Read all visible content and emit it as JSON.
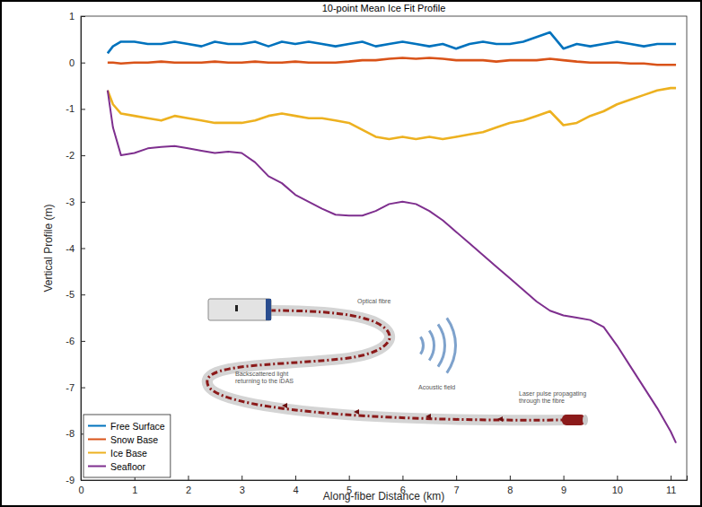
{
  "chart_data": {
    "type": "line",
    "title": "10-point Mean Ice Fit Profile",
    "x_label": "Along-fiber Distance (km)",
    "y_label": "Vertical Profile (m)",
    "x": [
      0.5,
      0.6,
      0.75,
      1,
      1.25,
      1.5,
      1.75,
      2,
      2.25,
      2.5,
      2.75,
      3,
      3.25,
      3.5,
      3.75,
      4,
      4.25,
      4.5,
      4.75,
      5,
      5.25,
      5.5,
      5.75,
      6,
      6.25,
      6.5,
      6.75,
      7,
      7.25,
      7.5,
      7.75,
      8,
      8.25,
      8.5,
      8.75,
      9,
      9.25,
      9.5,
      9.75,
      10,
      10.25,
      10.5,
      10.75,
      11,
      11.1
    ],
    "series": [
      {
        "name": "Free Surface",
        "color": "#0072BD",
        "values": [
          0.2,
          0.35,
          0.45,
          0.45,
          0.4,
          0.4,
          0.45,
          0.4,
          0.35,
          0.45,
          0.4,
          0.4,
          0.45,
          0.35,
          0.45,
          0.4,
          0.45,
          0.4,
          0.35,
          0.4,
          0.45,
          0.35,
          0.4,
          0.45,
          0.4,
          0.35,
          0.4,
          0.3,
          0.4,
          0.45,
          0.4,
          0.4,
          0.45,
          0.55,
          0.65,
          0.3,
          0.4,
          0.35,
          0.4,
          0.45,
          0.4,
          0.35,
          0.4,
          0.4,
          0.4
        ]
      },
      {
        "name": "Snow Base",
        "color": "#D95319",
        "values": [
          0,
          0,
          -0.02,
          0,
          0,
          0.02,
          0,
          0,
          0,
          0.02,
          0,
          0,
          0.02,
          0,
          0,
          0.02,
          0,
          0,
          0,
          0.02,
          0.05,
          0.05,
          0.08,
          0.1,
          0.08,
          0.1,
          0.08,
          0.05,
          0.05,
          0.05,
          0.02,
          0.05,
          0.05,
          0.05,
          0.08,
          0.05,
          0.02,
          0,
          0,
          0,
          -0.02,
          -0.02,
          -0.05,
          -0.05,
          -0.05
        ]
      },
      {
        "name": "Ice Base",
        "color": "#EDB120",
        "values": [
          -0.6,
          -0.9,
          -1.1,
          -1.15,
          -1.2,
          -1.25,
          -1.15,
          -1.2,
          -1.25,
          -1.3,
          -1.3,
          -1.3,
          -1.25,
          -1.15,
          -1.1,
          -1.15,
          -1.2,
          -1.2,
          -1.25,
          -1.3,
          -1.45,
          -1.6,
          -1.65,
          -1.6,
          -1.65,
          -1.6,
          -1.65,
          -1.6,
          -1.55,
          -1.5,
          -1.4,
          -1.3,
          -1.25,
          -1.15,
          -1.05,
          -1.35,
          -1.3,
          -1.15,
          -1.05,
          -0.9,
          -0.8,
          -0.7,
          -0.6,
          -0.55,
          -0.55
        ]
      },
      {
        "name": "Seafloor",
        "color": "#7E2F8E",
        "values": [
          -0.6,
          -1.4,
          -2.0,
          -1.95,
          -1.85,
          -1.82,
          -1.8,
          -1.85,
          -1.9,
          -1.95,
          -1.92,
          -1.95,
          -2.15,
          -2.45,
          -2.6,
          -2.85,
          -3.0,
          -3.15,
          -3.28,
          -3.3,
          -3.3,
          -3.2,
          -3.05,
          -3.0,
          -3.05,
          -3.2,
          -3.4,
          -3.65,
          -3.9,
          -4.15,
          -4.4,
          -4.65,
          -4.9,
          -5.15,
          -5.35,
          -5.45,
          -5.5,
          -5.55,
          -5.7,
          -6.1,
          -6.55,
          -7.0,
          -7.45,
          -7.95,
          -8.2
        ]
      }
    ],
    "xlim": [
      0,
      11.3
    ],
    "xticks": [
      0,
      1,
      2,
      3,
      4,
      5,
      6,
      7,
      8,
      9,
      10,
      11
    ],
    "ylim": [
      -9,
      1
    ],
    "yticks": [
      -9,
      -8,
      -7,
      -6,
      -5,
      -4,
      -3,
      -2,
      -1,
      0,
      1
    ],
    "legend": "lower left",
    "grid": false,
    "annotations": [
      "Optical fibre",
      "Backscattered light returning to the iDAS",
      "Acoustic field",
      "Laser pulse propagating through the fibre"
    ]
  }
}
